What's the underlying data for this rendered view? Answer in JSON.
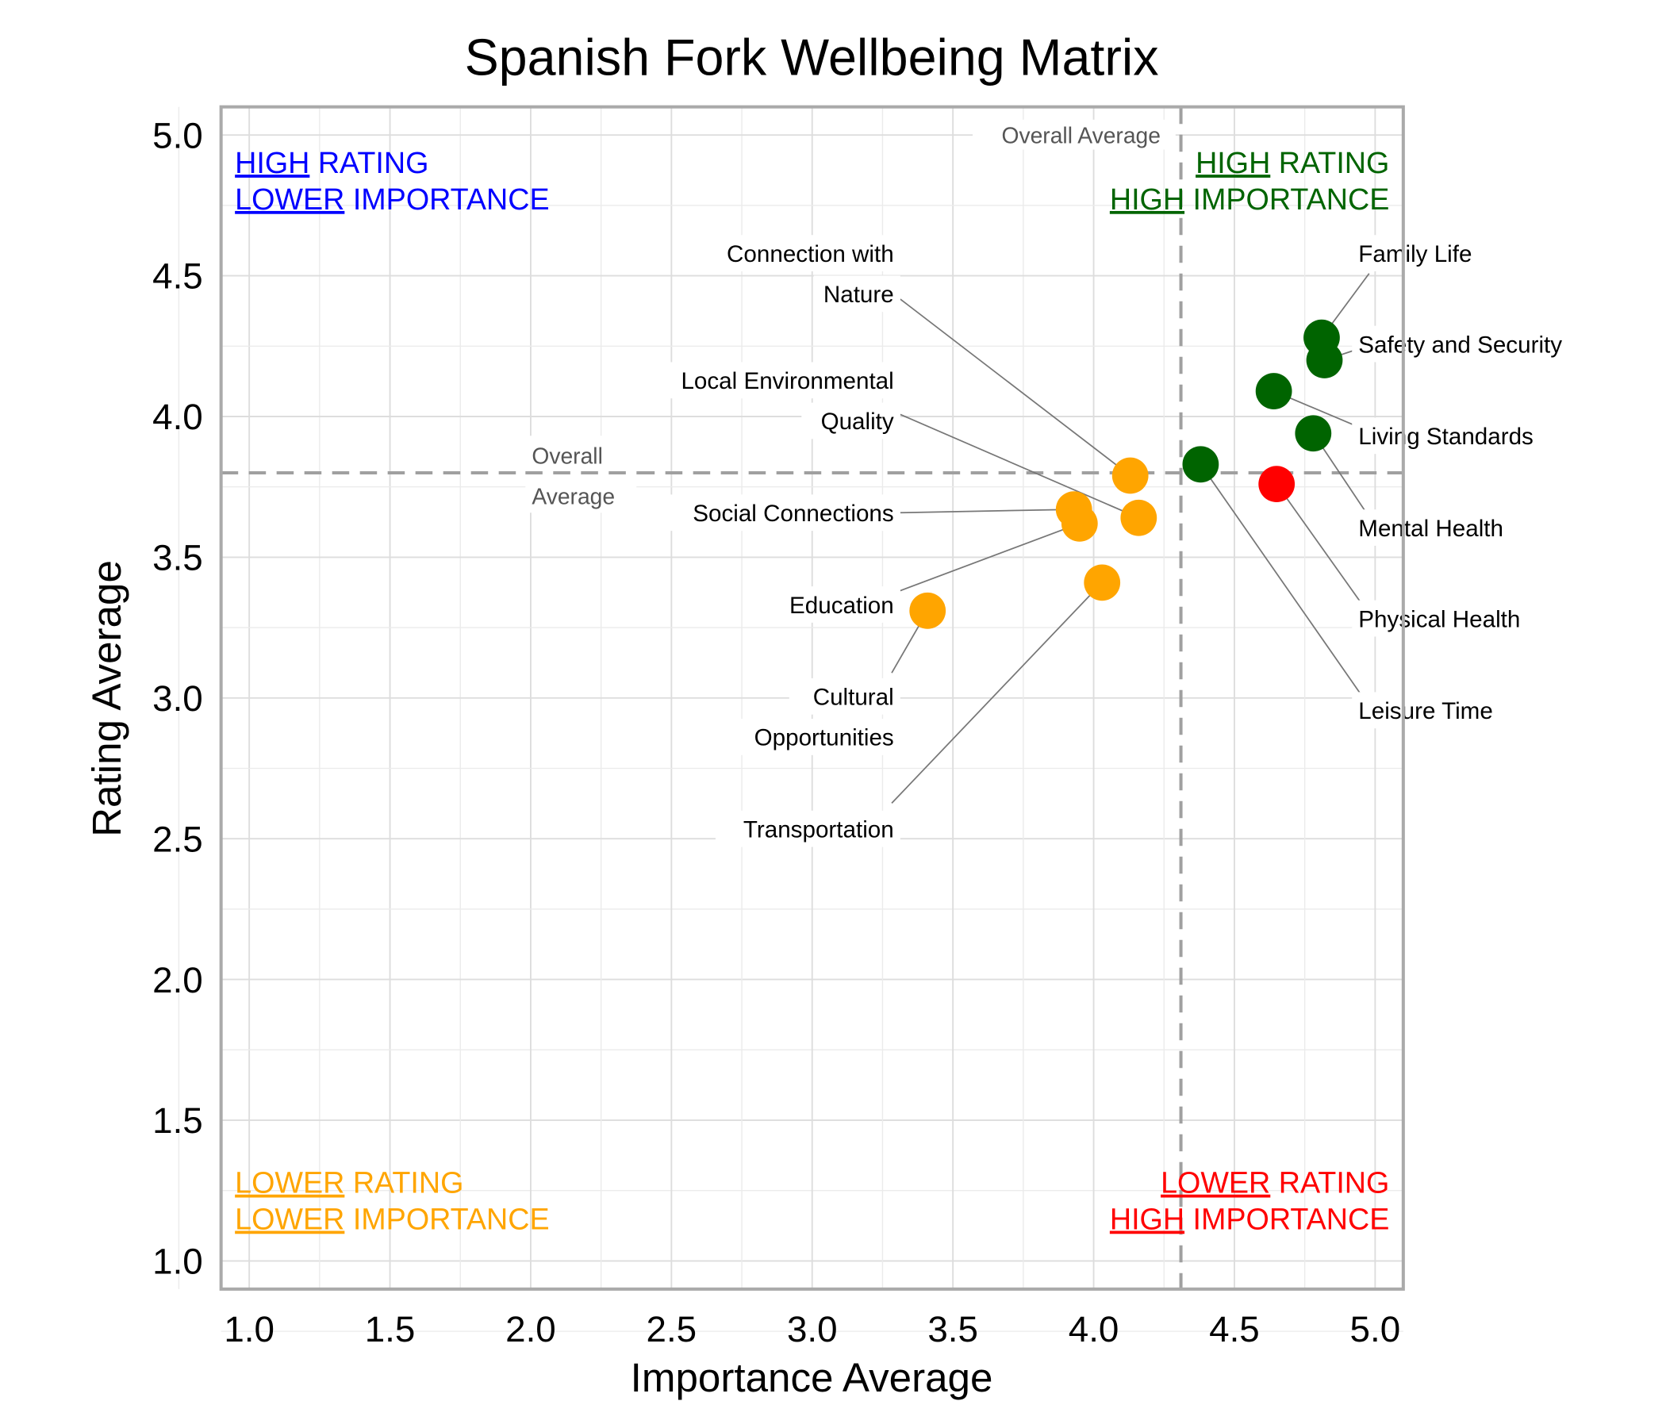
{
  "chart_data": {
    "type": "scatter",
    "title": "Spanish Fork Wellbeing Matrix",
    "xlabel": "Importance Average",
    "ylabel": "Rating Average",
    "xlim": [
      0.9,
      5.1
    ],
    "ylim": [
      0.9,
      5.1
    ],
    "xticks": [
      "1.0",
      "1.5",
      "2.0",
      "2.5",
      "3.0",
      "3.5",
      "4.0",
      "4.5",
      "5.0"
    ],
    "yticks": [
      "1.0",
      "1.5",
      "2.0",
      "2.5",
      "3.0",
      "3.5",
      "4.0",
      "4.5",
      "5.0"
    ],
    "grid": true,
    "reference_lines": {
      "x": 4.31,
      "y": 3.8,
      "x_label": "Overall Average",
      "y_label_lines": [
        "Overall",
        "Average"
      ]
    },
    "colors": {
      "green": "#006400",
      "orange": "#FFA500",
      "red": "#FF0000",
      "blue": "#0000FF",
      "reference": "#A0A0A0"
    },
    "points": [
      {
        "label": "Family Life",
        "label_lines": [
          "Family Life"
        ],
        "x": 4.81,
        "y": 4.28,
        "color": "#006400"
      },
      {
        "label": "Safety and Security",
        "label_lines": [
          "Safety and Security"
        ],
        "x": 4.82,
        "y": 4.2,
        "color": "#006400"
      },
      {
        "label": "Living Standards",
        "label_lines": [
          "Living Standards"
        ],
        "x": 4.64,
        "y": 4.09,
        "color": "#006400"
      },
      {
        "label": "Mental Health",
        "label_lines": [
          "Mental Health"
        ],
        "x": 4.78,
        "y": 3.94,
        "color": "#006400"
      },
      {
        "label": "Physical Health",
        "label_lines": [
          "Physical Health"
        ],
        "x": 4.65,
        "y": 3.76,
        "color": "#FF0000"
      },
      {
        "label": "Leisure Time",
        "label_lines": [
          "Leisure Time"
        ],
        "x": 4.38,
        "y": 3.83,
        "color": "#006400"
      },
      {
        "label": "Connection with Nature",
        "label_lines": [
          "Connection with",
          "Nature"
        ],
        "x": 4.13,
        "y": 3.79,
        "color": "#FFA500"
      },
      {
        "label": "Local Environmental Quality",
        "label_lines": [
          "Local Environmental",
          "Quality"
        ],
        "x": 4.16,
        "y": 3.64,
        "color": "#FFA500"
      },
      {
        "label": "Social Connections",
        "label_lines": [
          "Social Connections"
        ],
        "x": 3.93,
        "y": 3.67,
        "color": "#FFA500"
      },
      {
        "label": "Education",
        "label_lines": [
          "Education"
        ],
        "x": 3.95,
        "y": 3.62,
        "color": "#FFA500"
      },
      {
        "label": "Cultural Opportunities",
        "label_lines": [
          "Cultural",
          "Opportunities"
        ],
        "x": 3.41,
        "y": 3.31,
        "color": "#FFA500"
      },
      {
        "label": "Transportation",
        "label_lines": [
          "Transportation"
        ],
        "x": 4.03,
        "y": 3.41,
        "color": "#FFA500"
      }
    ],
    "quadrants": [
      {
        "name": "top-left",
        "color": "#0000FF",
        "line1": [
          "HIGH",
          " RATING"
        ],
        "line2": [
          "LOWER",
          " IMPORTANCE"
        ]
      },
      {
        "name": "top-right",
        "color": "#006400",
        "line1": [
          "HIGH",
          " RATING"
        ],
        "line2": [
          "HIGH",
          " IMPORTANCE"
        ]
      },
      {
        "name": "bottom-left",
        "color": "#FFA500",
        "line1": [
          "LOWER",
          " RATING"
        ],
        "line2": [
          "LOWER",
          " IMPORTANCE"
        ]
      },
      {
        "name": "bottom-right",
        "color": "#FF0000",
        "line1": [
          "LOWER",
          " RATING"
        ],
        "line2": [
          "HIGH",
          " IMPORTANCE"
        ]
      }
    ]
  }
}
